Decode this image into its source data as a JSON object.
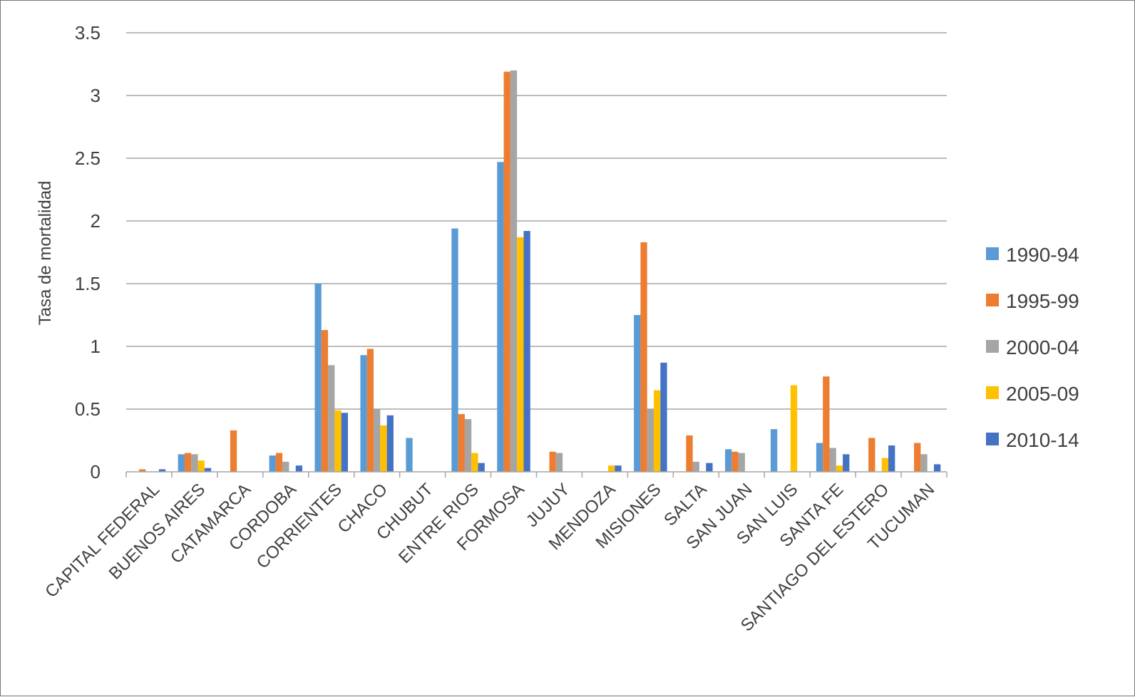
{
  "chart_data": {
    "type": "bar",
    "title": "",
    "xlabel": "",
    "ylabel": "Tasa de mortalidad",
    "ylim": [
      0,
      3.5
    ],
    "yticks": [
      "0",
      "0.5",
      "1",
      "1.5",
      "2",
      "2.5",
      "3",
      "3.5"
    ],
    "grid": true,
    "legend_position": "right",
    "categories": [
      "CAPITAL FEDERAL",
      "BUENOS AIRES",
      "CATAMARCA",
      "CORDOBA",
      "CORRIENTES",
      "CHACO",
      "CHUBUT",
      "ENTRE RIOS",
      "FORMOSA",
      "JUJUY",
      "MENDOZA",
      "MISIONES",
      "SALTA",
      "SAN JUAN",
      "SAN LUIS",
      "SANTA FE",
      "SANTIAGO DEL ESTERO",
      "TUCUMAN"
    ],
    "series": [
      {
        "name": "1990-94",
        "color": "#5B9BD5",
        "values": [
          0,
          0.14,
          0,
          0.13,
          1.5,
          0.93,
          0.27,
          1.94,
          2.47,
          0,
          0,
          1.25,
          0,
          0.18,
          0.34,
          0.23,
          0,
          0
        ]
      },
      {
        "name": "1995-99",
        "color": "#ED7D31",
        "values": [
          0.02,
          0.15,
          0.33,
          0.15,
          1.13,
          0.98,
          0,
          0.46,
          3.19,
          0.16,
          0,
          1.83,
          0.29,
          0.16,
          0,
          0.76,
          0.27,
          0.23
        ]
      },
      {
        "name": "2000-04",
        "color": "#A5A5A5",
        "values": [
          0,
          0.14,
          0,
          0.08,
          0.85,
          0.5,
          0,
          0.42,
          3.2,
          0.15,
          0,
          0.5,
          0.08,
          0.15,
          0,
          0.19,
          0,
          0.14
        ]
      },
      {
        "name": "2005-09",
        "color": "#FFC000",
        "values": [
          0,
          0.09,
          0,
          0,
          0.49,
          0.37,
          0,
          0.15,
          1.87,
          0,
          0.05,
          0.65,
          0,
          0,
          0.69,
          0.05,
          0.11,
          0
        ]
      },
      {
        "name": "2010-14",
        "color": "#4472C4",
        "values": [
          0.02,
          0.03,
          0,
          0.05,
          0.47,
          0.45,
          0,
          0.07,
          1.92,
          0,
          0.05,
          0.87,
          0.07,
          0,
          0,
          0.14,
          0.21,
          0.06
        ]
      }
    ]
  }
}
